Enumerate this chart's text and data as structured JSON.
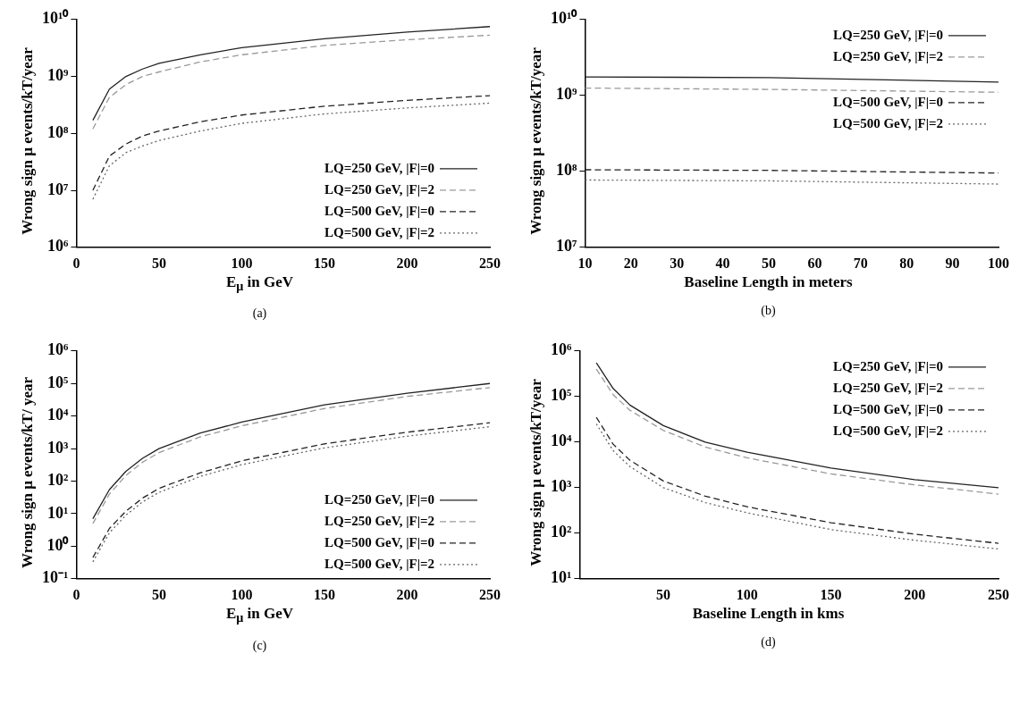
{
  "chart_data": [
    {
      "type": "line",
      "xlabel": "E$_{μ}$ in GeV",
      "ylabel": "Wrong sign μ events/kT/year",
      "annotations": [
        "(a)"
      ],
      "log": "y",
      "grid": false,
      "legend": "bottom right",
      "marker": "none",
      "xlim": [
        0,
        250
      ],
      "xticks": [
        0,
        50,
        100,
        150,
        200,
        250
      ],
      "ylim": [
        1000000,
        10000000000
      ],
      "yticks": [
        {
          "value": 1000000,
          "label": "10⁶"
        },
        {
          "value": 10000000,
          "label": "10⁷"
        },
        {
          "value": 100000000,
          "label": "10⁸"
        },
        {
          "value": 1000000000,
          "label": "10⁹"
        },
        {
          "value": 10000000000,
          "label": "10¹⁰"
        }
      ],
      "x": [
        10,
        20,
        30,
        40,
        50,
        75,
        100,
        150,
        200,
        250
      ],
      "series": [
        {
          "name": "LQ=250 GeV, |F|=0",
          "color": "#222222",
          "line_style": "solid",
          "values": [
            170000000,
            600000000,
            1000000000,
            1350000000,
            1700000000,
            2400000000,
            3200000000,
            4600000000,
            6000000000,
            7500000000
          ]
        },
        {
          "name": "LQ=250 GeV, |F|=2",
          "color": "#999999",
          "line_style": "dashed",
          "values": [
            120000000,
            430000000,
            720000000,
            1000000000,
            1200000000,
            1800000000,
            2400000000,
            3500000000,
            4400000000,
            5300000000
          ]
        },
        {
          "name": "LQ=500 GeV, |F|=0",
          "color": "#222222",
          "line_style": "dashed",
          "values": [
            10000000,
            40000000,
            65000000,
            90000000,
            110000000,
            160000000,
            210000000,
            300000000,
            380000000,
            460000000
          ]
        },
        {
          "name": "LQ=500 GeV, |F|=2",
          "color": "#666666",
          "line_style": "dotted",
          "values": [
            7000000,
            27000000,
            46000000,
            60000000,
            75000000,
            110000000,
            150000000,
            220000000,
            280000000,
            340000000
          ]
        }
      ]
    },
    {
      "type": "line",
      "xlabel": "Baseline Length in meters",
      "ylabel": "Wrong sign μ events/kT/year",
      "annotations": [
        "(b)"
      ],
      "log": "y",
      "grid": false,
      "legend": "top right",
      "marker": "none",
      "xlim": [
        10,
        100
      ],
      "xticks": [
        10,
        20,
        30,
        40,
        50,
        60,
        70,
        80,
        90,
        100
      ],
      "ylim": [
        10000000,
        10000000000
      ],
      "yticks": [
        {
          "value": 10000000,
          "label": "10⁷"
        },
        {
          "value": 100000000,
          "label": "10⁸"
        },
        {
          "value": 1000000000,
          "label": "10⁹"
        },
        {
          "value": 10000000000,
          "label": "10¹⁰"
        }
      ],
      "x": [
        10,
        50,
        100
      ],
      "series": [
        {
          "name": "LQ=250 GeV, |F|=0",
          "color": "#222222",
          "line_style": "solid",
          "values": [
            1750000000,
            1720000000,
            1500000000
          ]
        },
        {
          "name": "LQ=250 GeV, |F|=2",
          "color": "#999999",
          "line_style": "dashed",
          "values": [
            1250000000,
            1200000000,
            1100000000
          ]
        },
        {
          "name": "LQ=500 GeV, |F|=0",
          "color": "#222222",
          "line_style": "dashed",
          "values": [
            105000000,
            103000000,
            95000000
          ]
        },
        {
          "name": "LQ=500 GeV, |F|=2",
          "color": "#666666",
          "line_style": "dotted",
          "values": [
            77000000,
            75000000,
            68000000
          ]
        }
      ]
    },
    {
      "type": "line",
      "xlabel": "E$_{μ}$ in GeV",
      "ylabel": "Wrong sign μ events/kT/ year",
      "annotations": [
        "(c)"
      ],
      "log": "y",
      "grid": false,
      "legend": "bottom right",
      "marker": "none",
      "xlim": [
        0,
        250
      ],
      "xticks": [
        0,
        50,
        100,
        150,
        200,
        250
      ],
      "ylim": [
        0.1,
        1000000
      ],
      "yticks": [
        {
          "value": 0.1,
          "label": "10⁻¹"
        },
        {
          "value": 1,
          "label": "10⁰"
        },
        {
          "value": 10,
          "label": "10¹"
        },
        {
          "value": 100,
          "label": "10²"
        },
        {
          "value": 1000,
          "label": "10³"
        },
        {
          "value": 10000,
          "label": "10⁴"
        },
        {
          "value": 100000,
          "label": "10⁵"
        },
        {
          "value": 1000000,
          "label": "10⁶"
        }
      ],
      "x": [
        10,
        20,
        30,
        40,
        50,
        75,
        100,
        150,
        200,
        250
      ],
      "series": [
        {
          "name": "LQ=250 GeV, |F|=0",
          "color": "#222222",
          "line_style": "solid",
          "values": [
            7,
            55,
            200,
            500,
            1000,
            3000,
            6500,
            22000,
            50000,
            100000
          ]
        },
        {
          "name": "LQ=250 GeV, |F|=2",
          "color": "#999999",
          "line_style": "dashed",
          "values": [
            5,
            40,
            150,
            380,
            750,
            2300,
            5000,
            17000,
            40000,
            75000
          ]
        },
        {
          "name": "LQ=500 GeV, |F|=0",
          "color": "#222222",
          "line_style": "dashed",
          "values": [
            0.45,
            3.5,
            12,
            30,
            60,
            180,
            420,
            1400,
            3200,
            6200
          ]
        },
        {
          "name": "LQ=500 GeV, |F|=2",
          "color": "#666666",
          "line_style": "dotted",
          "values": [
            0.33,
            2.6,
            9,
            23,
            45,
            140,
            320,
            1050,
            2400,
            4700
          ]
        }
      ]
    },
    {
      "type": "line",
      "xlabel": "Baseline Length in kms",
      "ylabel": "Wrong sign μ events/kT/year",
      "annotations": [
        "(d)"
      ],
      "log": "y",
      "grid": false,
      "legend": "top right",
      "marker": "none",
      "xlim": [
        0,
        250
      ],
      "xticks": [
        50,
        100,
        150,
        200,
        250
      ],
      "ylim": [
        10,
        1000000
      ],
      "yticks": [
        {
          "value": 10,
          "label": "10¹"
        },
        {
          "value": 100,
          "label": "10²"
        },
        {
          "value": 1000,
          "label": "10³"
        },
        {
          "value": 10000,
          "label": "10⁴"
        },
        {
          "value": 100000,
          "label": "10⁵"
        },
        {
          "value": 1000000,
          "label": "10⁶"
        }
      ],
      "x": [
        10,
        20,
        30,
        50,
        75,
        100,
        150,
        200,
        250
      ],
      "series": [
        {
          "name": "LQ=250 GeV, |F|=0",
          "color": "#222222",
          "line_style": "solid",
          "values": [
            550000,
            150000,
            65000,
            23000,
            10000,
            6000,
            2700,
            1500,
            1000
          ]
        },
        {
          "name": "LQ=250 GeV, |F|=2",
          "color": "#999999",
          "line_style": "dashed",
          "values": [
            400000,
            110000,
            50000,
            18000,
            7800,
            4500,
            2000,
            1150,
            720
          ]
        },
        {
          "name": "LQ=500 GeV, |F|=0",
          "color": "#222222",
          "line_style": "dashed",
          "values": [
            35000,
            9000,
            4000,
            1400,
            650,
            380,
            170,
            95,
            60
          ]
        },
        {
          "name": "LQ=500 GeV, |F|=2",
          "color": "#666666",
          "line_style": "dotted",
          "values": [
            25000,
            6500,
            2900,
            1000,
            470,
            280,
            120,
            70,
            45
          ]
        }
      ]
    }
  ]
}
